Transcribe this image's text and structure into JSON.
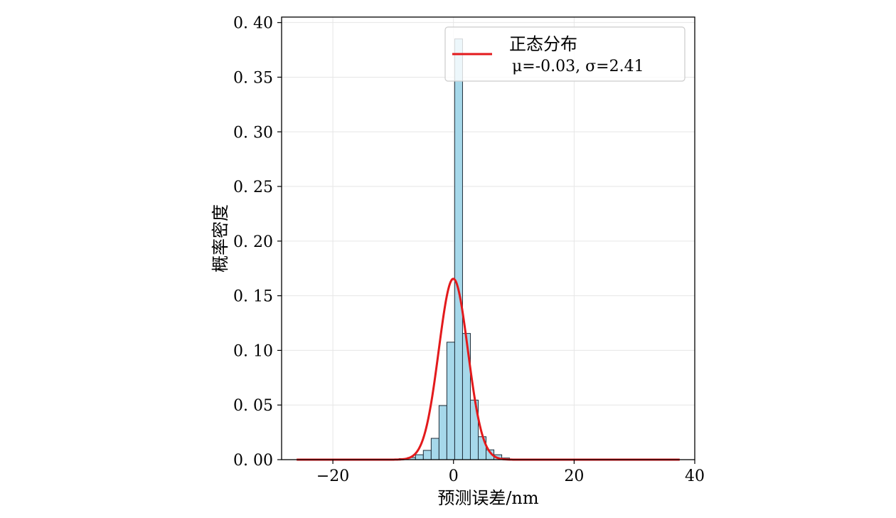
{
  "chart_data": {
    "type": "bar",
    "xlabel": "预测误差/nm",
    "ylabel": "概率密度",
    "xlim": [
      -28.5,
      40
    ],
    "ylim": [
      0,
      0.405
    ],
    "xticks": [
      -20,
      0,
      20,
      40
    ],
    "yticks": [
      0.0,
      0.05,
      0.1,
      0.15,
      0.2,
      0.25,
      0.3,
      0.35,
      0.4
    ],
    "grid": true,
    "legend_placement": "top-right",
    "bar_color": "#a6d8ea",
    "bar_edge_color": "#1f2e3a",
    "line_color": "#e31a1c",
    "histogram": {
      "bin_width": 1.3,
      "bins": [
        {
          "x0": -10.25,
          "density": 0.0005
        },
        {
          "x0": -9.0,
          "density": 0.001
        },
        {
          "x0": -7.6,
          "density": 0.002
        },
        {
          "x0": -6.3,
          "density": 0.0045
        },
        {
          "x0": -5.0,
          "density": 0.0085
        },
        {
          "x0": -3.7,
          "density": 0.0195
        },
        {
          "x0": -2.4,
          "density": 0.0495
        },
        {
          "x0": -1.1,
          "density": 0.1075
        },
        {
          "x0": 0.2,
          "density": 0.385
        },
        {
          "x0": 1.5,
          "density": 0.1155
        },
        {
          "x0": 2.8,
          "density": 0.0545
        },
        {
          "x0": 4.1,
          "density": 0.021
        },
        {
          "x0": 5.4,
          "density": 0.009
        },
        {
          "x0": 6.7,
          "density": 0.0045
        },
        {
          "x0": 8.0,
          "density": 0.0015
        },
        {
          "x0": 9.3,
          "density": 0.0005
        }
      ]
    },
    "series": [
      {
        "name": "正态分布",
        "type": "line",
        "mu": -0.03,
        "sigma": 2.41,
        "x_range": [
          -26,
          37.5
        ]
      }
    ],
    "legend": {
      "line1": "正态分布",
      "line2": "μ=-0.03,  σ=2.41"
    }
  }
}
